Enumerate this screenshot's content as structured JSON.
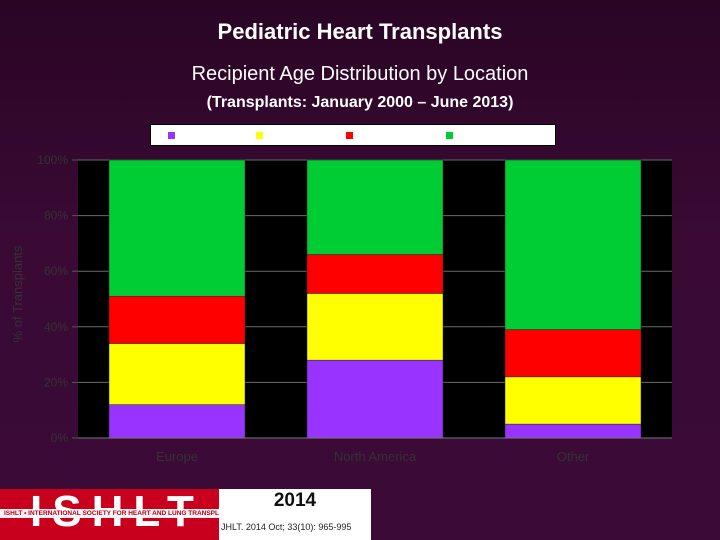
{
  "title": "Pediatric Heart Transplants",
  "subtitle": "Recipient Age Distribution by Location",
  "subtitle2": "(Transplants: January 2000 – June 2013)",
  "colors": {
    "bg": "#3a0a35",
    "plot": "#000000",
    "series": [
      "#9933ff",
      "#ffff00",
      "#ff0000",
      "#00cc33"
    ]
  },
  "chart_data": {
    "type": "bar",
    "stacked": true,
    "percent": true,
    "ylabel": "% of Transplants",
    "xlabel": "",
    "ylim": [
      0,
      100
    ],
    "yticks": [
      "0%",
      "20%",
      "40%",
      "60%",
      "80%",
      "100%"
    ],
    "categories": [
      "Europe",
      "North America",
      "Other"
    ],
    "series": [
      {
        "values": [
          12,
          28,
          5
        ]
      },
      {
        "values": [
          22,
          24,
          17
        ]
      },
      {
        "values": [
          17,
          14,
          17
        ]
      },
      {
        "values": [
          49,
          34,
          61
        ]
      }
    ],
    "legend": {
      "position": "top",
      "entries": [
        "",
        "",
        "",
        ""
      ]
    },
    "grid": true
  },
  "footer": {
    "logo_text": "ISHLT",
    "tagline": "ISHLT • INTERNATIONAL SOCIETY FOR HEART AND LUNG TRANSPLANTATION",
    "year": "2014",
    "citation": "JHLT. 2014 Oct; 33(10): 965-995"
  }
}
